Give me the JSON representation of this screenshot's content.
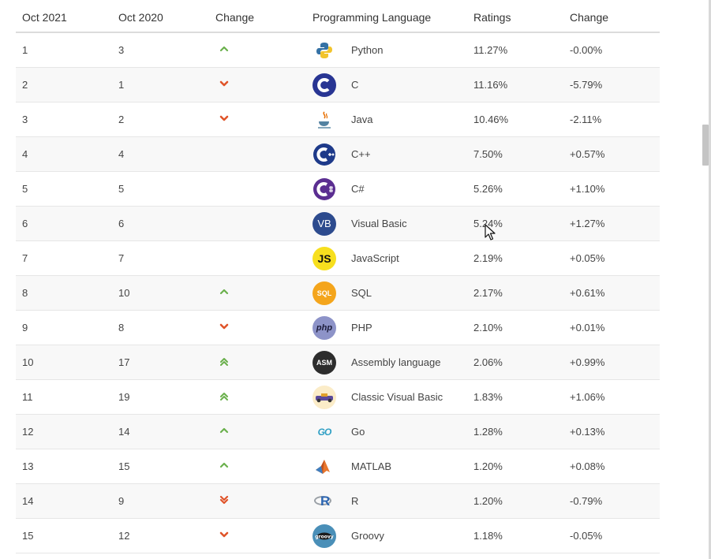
{
  "table": {
    "headers": [
      "Oct 2021",
      "Oct 2020",
      "Change",
      "Programming Language",
      "Ratings",
      "Change"
    ],
    "rows": [
      {
        "rank_2021": "1",
        "rank_2020": "3",
        "trend": "up",
        "language": "Python",
        "rating": "11.27%",
        "change": "-0.00%"
      },
      {
        "rank_2021": "2",
        "rank_2020": "1",
        "trend": "down",
        "language": "C",
        "rating": "11.16%",
        "change": "-5.79%"
      },
      {
        "rank_2021": "3",
        "rank_2020": "2",
        "trend": "down",
        "language": "Java",
        "rating": "10.46%",
        "change": "-2.11%"
      },
      {
        "rank_2021": "4",
        "rank_2020": "4",
        "trend": "none",
        "language": "C++",
        "rating": "7.50%",
        "change": "+0.57%"
      },
      {
        "rank_2021": "5",
        "rank_2020": "5",
        "trend": "none",
        "language": "C#",
        "rating": "5.26%",
        "change": "+1.10%"
      },
      {
        "rank_2021": "6",
        "rank_2020": "6",
        "trend": "none",
        "language": "Visual Basic",
        "rating": "5.24%",
        "change": "+1.27%"
      },
      {
        "rank_2021": "7",
        "rank_2020": "7",
        "trend": "none",
        "language": "JavaScript",
        "rating": "2.19%",
        "change": "+0.05%"
      },
      {
        "rank_2021": "8",
        "rank_2020": "10",
        "trend": "up",
        "language": "SQL",
        "rating": "2.17%",
        "change": "+0.61%"
      },
      {
        "rank_2021": "9",
        "rank_2020": "8",
        "trend": "down",
        "language": "PHP",
        "rating": "2.10%",
        "change": "+0.01%"
      },
      {
        "rank_2021": "10",
        "rank_2020": "17",
        "trend": "up2",
        "language": "Assembly language",
        "rating": "2.06%",
        "change": "+0.99%"
      },
      {
        "rank_2021": "11",
        "rank_2020": "19",
        "trend": "up2",
        "language": "Classic Visual Basic",
        "rating": "1.83%",
        "change": "+1.06%"
      },
      {
        "rank_2021": "12",
        "rank_2020": "14",
        "trend": "up",
        "language": "Go",
        "rating": "1.28%",
        "change": "+0.13%"
      },
      {
        "rank_2021": "13",
        "rank_2020": "15",
        "trend": "up",
        "language": "MATLAB",
        "rating": "1.20%",
        "change": "+0.08%"
      },
      {
        "rank_2021": "14",
        "rank_2020": "9",
        "trend": "down2",
        "language": "R",
        "rating": "1.20%",
        "change": "-0.79%"
      },
      {
        "rank_2021": "15",
        "rank_2020": "12",
        "trend": "down",
        "language": "Groovy",
        "rating": "1.18%",
        "change": "-0.05%"
      }
    ]
  },
  "logos": {
    "Python": {
      "icon": "python-logo-icon"
    },
    "C": {
      "icon": "c-logo-icon"
    },
    "Java": {
      "icon": "java-logo-icon"
    },
    "C++": {
      "icon": "cpp-logo-icon"
    },
    "C#": {
      "icon": "csharp-logo-icon"
    },
    "Visual Basic": {
      "icon": "vb-logo-icon",
      "text": "VB"
    },
    "JavaScript": {
      "icon": "js-logo-icon",
      "text": "JS"
    },
    "SQL": {
      "icon": "sql-logo-icon",
      "text": "SQL"
    },
    "PHP": {
      "icon": "php-logo-icon",
      "text": "php"
    },
    "Assembly language": {
      "icon": "asm-logo-icon",
      "text": "ASM"
    },
    "Classic Visual Basic": {
      "icon": "classic-vb-logo-icon"
    },
    "Go": {
      "icon": "go-logo-icon",
      "text": "GO"
    },
    "MATLAB": {
      "icon": "matlab-logo-icon"
    },
    "R": {
      "icon": "r-logo-icon",
      "text": "R"
    },
    "Groovy": {
      "icon": "groovy-logo-icon"
    }
  },
  "colors": {
    "up": "#6ab04c",
    "down": "#e0542a",
    "header_border": "#dcdcdc",
    "row_alt": "#f8f8f8"
  }
}
